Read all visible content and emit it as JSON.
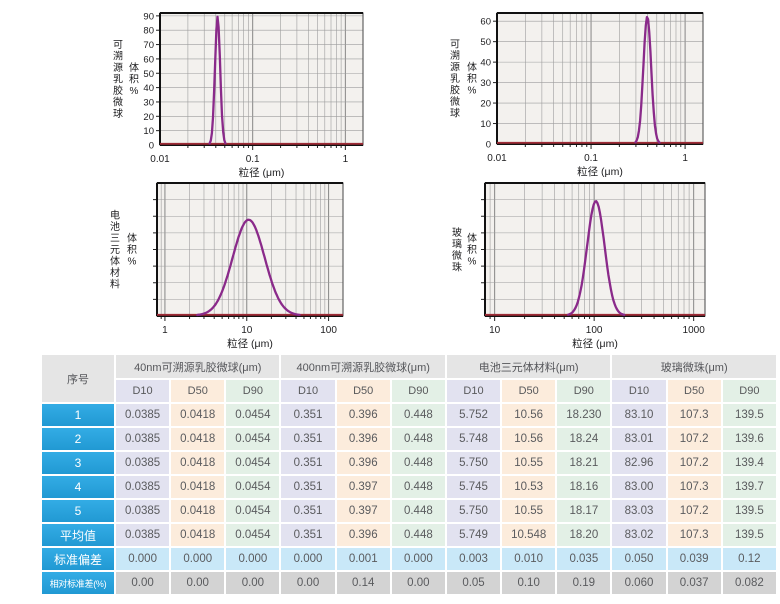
{
  "page": {
    "background": "#ffffff"
  },
  "charts_common": {
    "xlabel": "粒径 (μm)",
    "ylabel_sub": "体积%",
    "curve_color": "#8a2a8a",
    "baseline_color": "#9e2b36",
    "plot_bg": "#f3f1ee",
    "grid_color": "#9d9d9d",
    "axis_color": "#1a1a1a",
    "x_scale": "log",
    "grid": true
  },
  "chart_data": [
    {
      "type": "line",
      "name": "40nm可溯源乳胶微球",
      "ylabel_main": "可溯源乳胶微球",
      "ylabel": "体积%",
      "xlabel": "粒径 (μm)",
      "x_range": [
        0.01,
        1.55
      ],
      "x_tick_values": [
        0.01,
        0.1,
        1
      ],
      "x_tick_labels": [
        "0.01",
        "0.1",
        "1"
      ],
      "y_ticks": [
        0,
        10,
        20,
        30,
        40,
        50,
        60,
        70,
        80,
        90
      ],
      "y_max": 92,
      "y_axis_labeled": true,
      "peak": {
        "x": 0.0418,
        "height": 89,
        "d10": 0.0385,
        "d90": 0.0454
      }
    },
    {
      "type": "line",
      "name": "400nm可溯源乳胶微球",
      "ylabel_main": "可溯源乳胶微球",
      "ylabel": "体积%",
      "xlabel": "粒径 (μm)",
      "x_range": [
        0.01,
        1.55
      ],
      "x_tick_values": [
        0.01,
        0.1,
        1
      ],
      "x_tick_labels": [
        "0.01",
        "0.1",
        "1"
      ],
      "y_ticks": [
        0,
        10,
        20,
        30,
        40,
        50,
        60
      ],
      "y_max": 64,
      "y_axis_labeled": true,
      "peak": {
        "x": 0.396,
        "height": 62,
        "d10": 0.351,
        "d90": 0.448
      }
    },
    {
      "type": "line",
      "name": "电池三元体材料",
      "ylabel_main": "电池三元体材料",
      "ylabel": "体积%",
      "xlabel": "粒径 (μm)",
      "x_range": [
        0.8,
        150
      ],
      "x_tick_values": [
        1,
        10,
        100
      ],
      "x_tick_labels": [
        "1",
        "10",
        "100"
      ],
      "y_ticks": [],
      "y_max": 1,
      "y_axis_labeled": false,
      "h_gridline_intervals": 8,
      "peak": {
        "x": 10.548,
        "height": 0.72,
        "d10": 5.749,
        "d90": 18.2
      }
    },
    {
      "type": "line",
      "name": "玻璃微珠",
      "ylabel_main": "玻璃微珠",
      "ylabel": "体积%",
      "xlabel": "粒径 (μm)",
      "x_range": [
        8,
        1300
      ],
      "x_tick_values": [
        10,
        100,
        1000
      ],
      "x_tick_labels": [
        "10",
        "100",
        "1000"
      ],
      "y_ticks": [],
      "y_max": 1,
      "y_axis_labeled": false,
      "h_gridline_intervals": 8,
      "peak": {
        "x": 104,
        "height": 0.86,
        "d10": 83.02,
        "d90": 139.5
      }
    }
  ],
  "table": {
    "corner_label": "序号",
    "groups": [
      {
        "label": "40nm可溯源乳胶微球(μm)"
      },
      {
        "label": "400nm可溯源乳胶微球(μm)"
      },
      {
        "label": "电池三元体材料(μm)"
      },
      {
        "label": "玻璃微珠(μm)"
      }
    ],
    "subheaders": [
      "D10",
      "D50",
      "D90",
      "D10",
      "D50",
      "D90",
      "D10",
      "D50",
      "D90",
      "D10",
      "D50",
      "D90"
    ],
    "rows": [
      {
        "label": "1",
        "values": [
          "0.0385",
          "0.0418",
          "0.0454",
          "0.351",
          "0.396",
          "0.448",
          "5.752",
          "10.56",
          "18.230",
          "83.10",
          "107.3",
          "139.5"
        ]
      },
      {
        "label": "2",
        "values": [
          "0.0385",
          "0.0418",
          "0.0454",
          "0.351",
          "0.396",
          "0.448",
          "5.748",
          "10.56",
          "18.24",
          "83.01",
          "107.2",
          "139.6"
        ]
      },
      {
        "label": "3",
        "values": [
          "0.0385",
          "0.0418",
          "0.0454",
          "0.351",
          "0.396",
          "0.448",
          "5.750",
          "10.55",
          "18.21",
          "82.96",
          "107.2",
          "139.4"
        ]
      },
      {
        "label": "4",
        "values": [
          "0.0385",
          "0.0418",
          "0.0454",
          "0.351",
          "0.397",
          "0.448",
          "5.745",
          "10.53",
          "18.16",
          "83.00",
          "107.3",
          "139.7"
        ]
      },
      {
        "label": "5",
        "values": [
          "0.0385",
          "0.0418",
          "0.0454",
          "0.351",
          "0.397",
          "0.448",
          "5.750",
          "10.55",
          "18.17",
          "83.03",
          "107.2",
          "139.5"
        ]
      },
      {
        "label": "平均值",
        "values": [
          "0.0385",
          "0.0418",
          "0.0454",
          "0.351",
          "0.396",
          "0.448",
          "5.749",
          "10.548",
          "18.20",
          "83.02",
          "107.3",
          "139.5"
        ]
      },
      {
        "label": "标准偏差",
        "kind": "std",
        "values": [
          "0.000",
          "0.000",
          "0.000",
          "0.000",
          "0.001",
          "0.000",
          "0.003",
          "0.010",
          "0.035",
          "0.050",
          "0.039",
          "0.12"
        ]
      },
      {
        "label": "相对标准差(%)",
        "kind": "rsd",
        "values": [
          "0.00",
          "0.00",
          "0.00",
          "0.00",
          "0.14",
          "0.00",
          "0.05",
          "0.10",
          "0.19",
          "0.060",
          "0.037",
          "0.082"
        ]
      }
    ]
  }
}
